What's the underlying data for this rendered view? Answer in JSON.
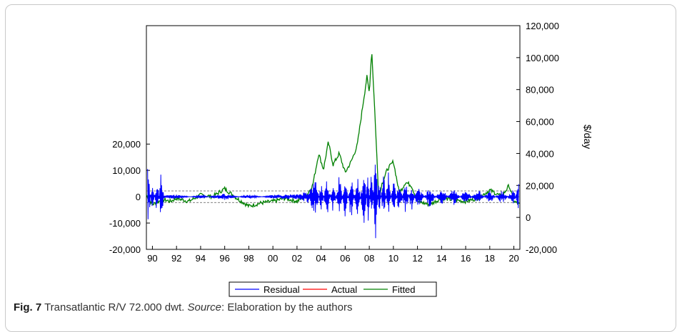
{
  "caption": {
    "figure_label": "Fig. 7",
    "title": "Transatlantic R/V 72.000 dwt.",
    "source_label": "Source",
    "source_text": ": Elaboration by the authors"
  },
  "chart_data": {
    "type": "line",
    "left_axis": {
      "ticks": [
        -20000,
        -10000,
        0,
        10000,
        20000
      ],
      "tick_labels": [
        "-20,000",
        "-10,000",
        "0",
        "10,000",
        "20,000"
      ],
      "range": [
        -20000,
        65000
      ]
    },
    "right_axis": {
      "label": "$/day",
      "ticks": [
        -20000,
        0,
        20000,
        40000,
        60000,
        80000,
        100000,
        120000
      ],
      "tick_labels": [
        "-20,000",
        "0",
        "20,000",
        "40,000",
        "60,000",
        "80,000",
        "100,000",
        "120,000"
      ],
      "range": [
        -20000,
        120000
      ]
    },
    "x_axis": {
      "range": [
        1989.5,
        2020.5
      ],
      "ticks": [
        1990,
        1992,
        1994,
        1996,
        1998,
        2000,
        2002,
        2004,
        2006,
        2008,
        2010,
        2012,
        2014,
        2016,
        2018,
        2020
      ],
      "tick_labels": [
        "90",
        "92",
        "94",
        "96",
        "98",
        "00",
        "02",
        "04",
        "06",
        "08",
        "10",
        "12",
        "14",
        "16",
        "18",
        "20"
      ]
    },
    "residual_band": [
      -2200,
      2200
    ],
    "legend": {
      "placement": "bottom-center",
      "items": [
        {
          "name": "Residual",
          "color": "#0000ff"
        },
        {
          "name": "Actual",
          "color": "#ff0000"
        },
        {
          "name": "Fitted",
          "color": "#008000"
        }
      ]
    },
    "series": [
      {
        "name": "Fitted",
        "axis": "right",
        "color": "#008000",
        "x": [
          1989.5,
          1990.0,
          1990.5,
          1991.0,
          1991.5,
          1992.0,
          1993.0,
          1994.0,
          1995.0,
          1996.0,
          1997.0,
          1998.0,
          1999.0,
          2000.0,
          2001.0,
          2002.0,
          2002.8,
          2003.3,
          2003.8,
          2004.2,
          2004.6,
          2005.0,
          2005.5,
          2006.0,
          2006.5,
          2007.0,
          2007.5,
          2007.8,
          2008.0,
          2008.2,
          2008.5,
          2008.8,
          2009.0,
          2009.5,
          2010.0,
          2010.5,
          2011.0,
          2011.5,
          2012.0,
          2013.0,
          2014.0,
          2015.0,
          2016.0,
          2017.0,
          2018.0,
          2019.0,
          2019.6,
          2020.0,
          2020.5
        ],
        "y": [
          14000,
          8000,
          10000,
          11000,
          10000,
          12000,
          10000,
          14000,
          13000,
          18000,
          12000,
          7000,
          9000,
          10000,
          12000,
          10000,
          14000,
          20000,
          40000,
          30000,
          47000,
          33000,
          40000,
          28000,
          35000,
          45000,
          72000,
          88000,
          78000,
          105000,
          60000,
          8000,
          20000,
          30000,
          35000,
          15000,
          22000,
          20000,
          10000,
          8000,
          12000,
          11000,
          10000,
          12000,
          17000,
          13000,
          20000,
          10000,
          8000
        ]
      },
      {
        "name": "Residual",
        "axis": "left",
        "color": "#0000ff",
        "x": [
          1989.6,
          1990.0,
          1990.4,
          1990.7,
          1991.0,
          1992.0,
          1994.0,
          1996.0,
          1998.0,
          2000.0,
          2002.0,
          2003.0,
          2003.6,
          2004.0,
          2004.5,
          2005.0,
          2005.5,
          2006.0,
          2006.5,
          2007.0,
          2007.6,
          2007.9,
          2008.2,
          2008.5,
          2008.8,
          2009.2,
          2009.6,
          2010.0,
          2010.5,
          2011.0,
          2011.5,
          2012.0,
          2013.0,
          2014.0,
          2015.0,
          2016.0,
          2017.0,
          2018.0,
          2019.0,
          2020.0,
          2020.4
        ],
        "y": [
          13000,
          -8000,
          9000,
          -9000,
          500,
          800,
          -600,
          1200,
          -800,
          700,
          900,
          2500,
          7000,
          -6000,
          8000,
          -7000,
          9000,
          -8000,
          10000,
          -9000,
          12000,
          -12000,
          15000,
          -19000,
          9000,
          -10000,
          11000,
          -9000,
          8000,
          -7000,
          6000,
          -5000,
          4000,
          -3500,
          3500,
          -3000,
          3000,
          -2500,
          2800,
          -3000,
          6000
        ]
      }
    ]
  }
}
